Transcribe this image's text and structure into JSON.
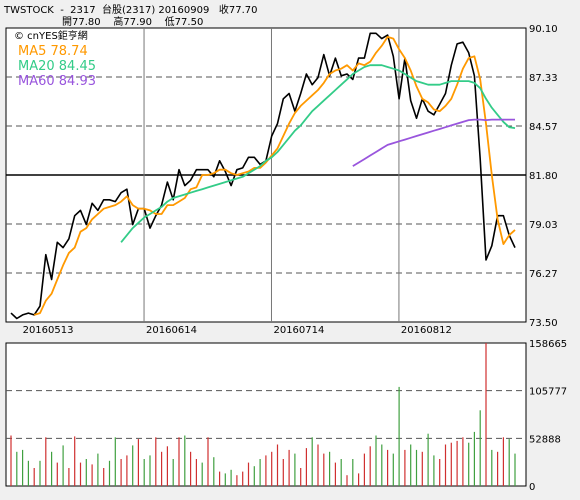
{
  "header": {
    "line1": "TWSTOCK  -  2317  台股(2317) 20160909   收77.70",
    "line2": "開77.80    高77.90    低77.50"
  },
  "watermark": "© cnYES鉅亨網",
  "legend": [
    {
      "label": "MA5 78.74",
      "color": "#ff9900"
    },
    {
      "label": "MA20 84.45",
      "color": "#33cc88"
    },
    {
      "label": "MA60 84.93",
      "color": "#9955dd"
    }
  ],
  "chart_data": [
    {
      "type": "line",
      "ylim": [
        73.5,
        90.1
      ],
      "yticks": [
        "90.10",
        "87.33",
        "84.57",
        "81.80",
        "79.03",
        "76.27",
        "73.50"
      ],
      "xtick_labels": [
        {
          "label": "20160513",
          "day": 2
        },
        {
          "label": "20160614",
          "day": 24
        },
        {
          "label": "20160714",
          "day": 46
        },
        {
          "label": "20160812",
          "day": 68
        }
      ],
      "grid": true,
      "series": [
        {
          "name": "",
          "color": "#000000",
          "values": [
            74.0,
            73.7,
            73.9,
            74.0,
            73.9,
            74.4,
            77.3,
            75.9,
            78.0,
            77.7,
            78.2,
            79.5,
            79.8,
            79.0,
            80.2,
            79.8,
            80.4,
            80.4,
            80.3,
            80.8,
            81.0,
            79.0,
            79.9,
            79.9,
            78.8,
            79.5,
            80.1,
            81.4,
            80.4,
            82.1,
            81.2,
            81.5,
            82.1,
            82.1,
            82.1,
            81.7,
            82.6,
            82.0,
            81.2,
            82.1,
            82.2,
            82.8,
            82.8,
            82.4,
            82.6,
            84.0,
            84.7,
            86.1,
            86.4,
            85.4,
            86.4,
            87.5,
            86.9,
            87.3,
            88.6,
            87.4,
            88.4,
            87.4,
            87.5,
            87.2,
            88.4,
            88.4,
            89.8,
            89.8,
            89.5,
            89.7,
            88.5,
            86.1,
            88.4,
            86.0,
            85.0,
            86.1,
            85.4,
            85.2,
            85.8,
            86.4,
            88.0,
            89.2,
            89.3,
            88.7,
            87.4,
            82.7,
            77.0,
            77.8,
            79.5,
            79.5,
            78.4,
            77.7
          ]
        },
        {
          "name": "",
          "color": "#ff9900",
          "values": [
            null,
            null,
            null,
            null,
            73.9,
            74.0,
            74.7,
            75.1,
            75.9,
            76.7,
            77.4,
            77.7,
            78.6,
            78.8,
            79.3,
            79.6,
            79.9,
            80.0,
            80.1,
            80.3,
            80.6,
            80.1,
            79.9,
            79.9,
            79.8,
            79.6,
            79.6,
            80.1,
            80.1,
            80.3,
            80.5,
            81.0,
            81.1,
            81.8,
            81.8,
            81.9,
            82.1,
            82.1,
            81.9,
            81.8,
            81.9,
            82.0,
            82.2,
            82.2,
            82.5,
            82.9,
            83.3,
            84.0,
            84.7,
            85.3,
            85.7,
            86.0,
            86.3,
            86.6,
            87.0,
            87.5,
            87.7,
            87.8,
            88.0,
            87.7,
            88.1,
            88.0,
            88.2,
            88.7,
            89.1,
            89.6,
            89.5,
            88.9,
            88.4,
            87.7,
            86.8,
            86.1,
            85.9,
            85.5,
            85.4,
            85.7,
            86.1,
            86.9,
            87.8,
            88.4,
            88.5,
            87.2,
            84.7,
            81.8,
            79.3,
            77.9,
            78.4,
            78.7
          ]
        },
        {
          "name": "",
          "color": "#33cc88",
          "values": [
            null,
            null,
            null,
            null,
            null,
            null,
            null,
            null,
            null,
            null,
            null,
            null,
            null,
            null,
            null,
            null,
            null,
            null,
            null,
            78.0,
            78.4,
            78.8,
            79.1,
            79.4,
            79.6,
            79.8,
            80.0,
            80.3,
            80.5,
            80.6,
            80.7,
            80.8,
            80.9,
            81.0,
            81.1,
            81.2,
            81.3,
            81.4,
            81.5,
            81.6,
            81.7,
            81.9,
            82.1,
            82.3,
            82.6,
            82.8,
            83.1,
            83.5,
            83.9,
            84.3,
            84.6,
            85.0,
            85.4,
            85.7,
            86.0,
            86.3,
            86.6,
            86.9,
            87.2,
            87.5,
            87.7,
            87.9,
            88.0,
            88.0,
            88.0,
            87.9,
            87.8,
            87.7,
            87.5,
            87.3,
            87.1,
            87.0,
            86.9,
            86.9,
            86.9,
            87.0,
            87.1,
            87.1,
            87.1,
            87.1,
            87.0,
            86.7,
            86.1,
            85.6,
            85.2,
            84.8,
            84.5,
            84.45
          ]
        },
        {
          "name": "",
          "color": "#9955dd",
          "values": [
            null,
            null,
            null,
            null,
            null,
            null,
            null,
            null,
            null,
            null,
            null,
            null,
            null,
            null,
            null,
            null,
            null,
            null,
            null,
            null,
            null,
            null,
            null,
            null,
            null,
            null,
            null,
            null,
            null,
            null,
            null,
            null,
            null,
            null,
            null,
            null,
            null,
            null,
            null,
            null,
            null,
            null,
            null,
            null,
            null,
            null,
            null,
            null,
            null,
            null,
            null,
            null,
            null,
            null,
            null,
            null,
            null,
            null,
            null,
            82.3,
            82.5,
            82.7,
            82.9,
            83.1,
            83.3,
            83.5,
            83.6,
            83.7,
            83.8,
            83.9,
            84.0,
            84.1,
            84.2,
            84.3,
            84.4,
            84.5,
            84.6,
            84.7,
            84.8,
            84.9,
            84.93,
            84.93,
            84.9,
            84.93,
            84.93,
            84.93,
            84.93,
            84.93
          ]
        }
      ]
    },
    {
      "type": "bar",
      "ylim": [
        0,
        158665
      ],
      "yticks": [
        "158665",
        "105777",
        "52888",
        "0"
      ],
      "values": [
        56000,
        38000,
        40000,
        28000,
        20000,
        28000,
        54000,
        38000,
        26000,
        45000,
        20000,
        55000,
        26000,
        30000,
        24000,
        36000,
        20000,
        28000,
        54000,
        30000,
        34000,
        45000,
        52000,
        30000,
        34000,
        54000,
        38000,
        44000,
        30000,
        54000,
        56000,
        38000,
        30000,
        26000,
        54000,
        32000,
        16000,
        14000,
        18000,
        12000,
        16000,
        26000,
        22000,
        30000,
        34000,
        38000,
        46000,
        30000,
        40000,
        36000,
        20000,
        42000,
        54000,
        46000,
        36000,
        38000,
        26000,
        30000,
        12000,
        30000,
        14000,
        36000,
        44000,
        56000,
        46000,
        40000,
        36000,
        110000,
        40000,
        46000,
        40000,
        38000,
        58000,
        34000,
        30000,
        46000,
        48000,
        50000,
        54000,
        48000,
        60000,
        84000,
        158665,
        40000,
        38000,
        54000,
        52000,
        36000
      ],
      "colors": [
        "#d03030",
        "#40a040",
        "#40a040",
        "#40a040",
        "#d03030",
        "#40a040",
        "#d03030",
        "#40a040",
        "#d03030",
        "#40a040",
        "#d03030",
        "#d03030",
        "#d03030",
        "#40a040",
        "#d03030",
        "#40a040",
        "#d03030",
        "#40a040",
        "#40a040",
        "#d03030",
        "#d03030",
        "#40a040",
        "#d03030",
        "#40a040",
        "#40a040",
        "#d03030",
        "#d03030",
        "#d03030",
        "#40a040",
        "#d03030",
        "#40a040",
        "#d03030",
        "#d03030",
        "#40a040",
        "#d03030",
        "#40a040",
        "#d03030",
        "#40a040",
        "#40a040",
        "#d03030",
        "#d03030",
        "#d03030",
        "#40a040",
        "#40a040",
        "#d03030",
        "#d03030",
        "#d03030",
        "#d03030",
        "#d03030",
        "#40a040",
        "#d03030",
        "#d03030",
        "#40a040",
        "#d03030",
        "#d03030",
        "#40a040",
        "#d03030",
        "#40a040",
        "#d03030",
        "#40a040",
        "#d03030",
        "#d03030",
        "#d03030",
        "#40a040",
        "#40a040",
        "#d03030",
        "#40a040",
        "#40a040",
        "#d03030",
        "#40a040",
        "#40a040",
        "#d03030",
        "#40a040",
        "#40a040",
        "#d03030",
        "#d03030",
        "#d03030",
        "#d03030",
        "#d03030",
        "#40a040",
        "#40a040",
        "#40a040",
        "#d03030",
        "#40a040",
        "#d03030",
        "#d03030",
        "#40a040",
        "#40a040"
      ]
    }
  ]
}
